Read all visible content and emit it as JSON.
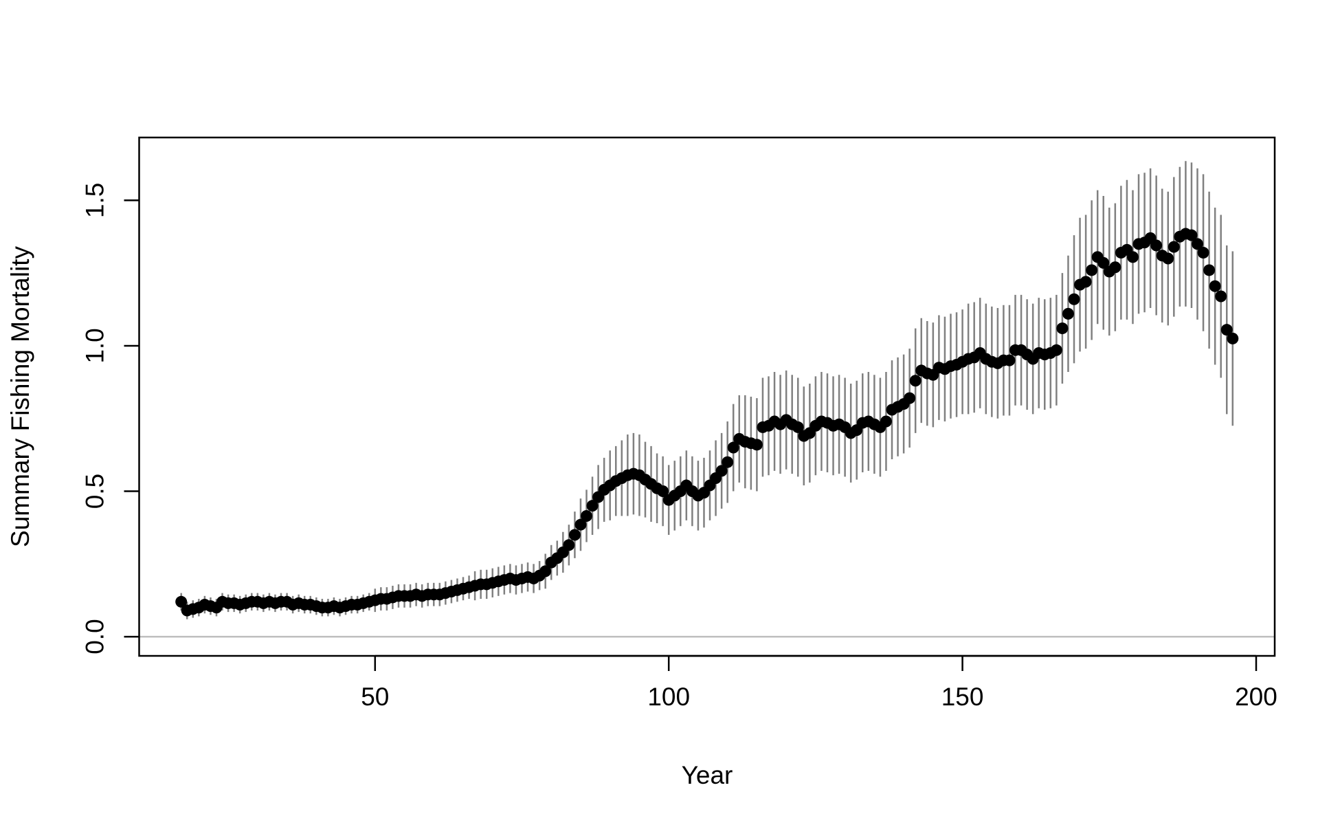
{
  "chart_data": {
    "type": "scatter",
    "x_label": "Year",
    "y_label": "Summary Fishing Mortality",
    "x": [
      17,
      18,
      19,
      20,
      21,
      22,
      23,
      24,
      25,
      26,
      27,
      28,
      29,
      30,
      31,
      32,
      33,
      34,
      35,
      36,
      37,
      38,
      39,
      40,
      41,
      42,
      43,
      44,
      45,
      46,
      47,
      48,
      49,
      50,
      51,
      52,
      53,
      54,
      55,
      56,
      57,
      58,
      59,
      60,
      61,
      62,
      63,
      64,
      65,
      66,
      67,
      68,
      69,
      70,
      71,
      72,
      73,
      74,
      75,
      76,
      77,
      78,
      79,
      80,
      81,
      82,
      83,
      84,
      85,
      86,
      87,
      88,
      89,
      90,
      91,
      92,
      93,
      94,
      95,
      96,
      97,
      98,
      99,
      100,
      101,
      102,
      103,
      104,
      105,
      106,
      107,
      108,
      109,
      110,
      111,
      112,
      113,
      114,
      115,
      116,
      117,
      118,
      119,
      120,
      121,
      122,
      123,
      124,
      125,
      126,
      127,
      128,
      129,
      130,
      131,
      132,
      133,
      134,
      135,
      136,
      137,
      138,
      139,
      140,
      141,
      142,
      143,
      144,
      145,
      146,
      147,
      148,
      149,
      150,
      151,
      152,
      153,
      154,
      155,
      156,
      157,
      158,
      159,
      160,
      161,
      162,
      163,
      164,
      165,
      166,
      167,
      168,
      169,
      170,
      171,
      172,
      173,
      174,
      175,
      176,
      177,
      178,
      179,
      180,
      181,
      182,
      183,
      184,
      185,
      186,
      187,
      188,
      189,
      190,
      191,
      192,
      193,
      194,
      195,
      196
    ],
    "values": [
      0.12,
      0.09,
      0.095,
      0.1,
      0.11,
      0.105,
      0.1,
      0.12,
      0.115,
      0.115,
      0.11,
      0.115,
      0.12,
      0.12,
      0.115,
      0.12,
      0.115,
      0.12,
      0.12,
      0.11,
      0.115,
      0.11,
      0.11,
      0.105,
      0.1,
      0.1,
      0.105,
      0.1,
      0.105,
      0.11,
      0.11,
      0.115,
      0.12,
      0.125,
      0.13,
      0.13,
      0.135,
      0.14,
      0.14,
      0.14,
      0.145,
      0.14,
      0.145,
      0.145,
      0.145,
      0.15,
      0.155,
      0.16,
      0.165,
      0.17,
      0.175,
      0.18,
      0.18,
      0.185,
      0.19,
      0.195,
      0.2,
      0.195,
      0.2,
      0.205,
      0.2,
      0.21,
      0.225,
      0.255,
      0.27,
      0.29,
      0.315,
      0.35,
      0.385,
      0.415,
      0.45,
      0.48,
      0.505,
      0.52,
      0.535,
      0.545,
      0.555,
      0.56,
      0.555,
      0.54,
      0.525,
      0.51,
      0.5,
      0.47,
      0.485,
      0.5,
      0.52,
      0.5,
      0.485,
      0.495,
      0.52,
      0.545,
      0.57,
      0.6,
      0.65,
      0.68,
      0.67,
      0.665,
      0.66,
      0.72,
      0.725,
      0.74,
      0.73,
      0.745,
      0.73,
      0.72,
      0.69,
      0.7,
      0.725,
      0.74,
      0.735,
      0.725,
      0.73,
      0.72,
      0.7,
      0.71,
      0.735,
      0.74,
      0.73,
      0.72,
      0.74,
      0.78,
      0.79,
      0.8,
      0.82,
      0.88,
      0.915,
      0.905,
      0.9,
      0.925,
      0.92,
      0.93,
      0.935,
      0.945,
      0.955,
      0.96,
      0.975,
      0.955,
      0.945,
      0.94,
      0.95,
      0.95,
      0.985,
      0.985,
      0.97,
      0.955,
      0.975,
      0.97,
      0.975,
      0.985,
      1.06,
      1.11,
      1.16,
      1.21,
      1.22,
      1.26,
      1.305,
      1.285,
      1.255,
      1.27,
      1.32,
      1.33,
      1.305,
      1.35,
      1.355,
      1.37,
      1.345,
      1.31,
      1.3,
      1.34,
      1.375,
      1.385,
      1.38,
      1.35,
      1.32,
      1.26,
      1.205,
      1.17,
      1.055,
      1.025
    ],
    "errors": [
      0.03,
      0.03,
      0.03,
      0.03,
      0.03,
      0.03,
      0.03,
      0.03,
      0.03,
      0.03,
      0.03,
      0.03,
      0.03,
      0.03,
      0.03,
      0.03,
      0.03,
      0.03,
      0.03,
      0.03,
      0.03,
      0.03,
      0.03,
      0.03,
      0.03,
      0.03,
      0.03,
      0.03,
      0.03,
      0.03,
      0.03,
      0.03,
      0.03,
      0.04,
      0.04,
      0.04,
      0.04,
      0.04,
      0.04,
      0.04,
      0.04,
      0.04,
      0.04,
      0.04,
      0.04,
      0.04,
      0.04,
      0.04,
      0.04,
      0.04,
      0.05,
      0.05,
      0.05,
      0.05,
      0.05,
      0.05,
      0.05,
      0.05,
      0.05,
      0.05,
      0.05,
      0.05,
      0.06,
      0.06,
      0.06,
      0.07,
      0.07,
      0.08,
      0.09,
      0.09,
      0.1,
      0.11,
      0.11,
      0.12,
      0.12,
      0.13,
      0.14,
      0.14,
      0.14,
      0.13,
      0.13,
      0.12,
      0.12,
      0.12,
      0.12,
      0.12,
      0.12,
      0.12,
      0.12,
      0.12,
      0.12,
      0.13,
      0.13,
      0.14,
      0.15,
      0.15,
      0.16,
      0.16,
      0.16,
      0.17,
      0.17,
      0.17,
      0.17,
      0.17,
      0.17,
      0.17,
      0.17,
      0.17,
      0.17,
      0.17,
      0.17,
      0.17,
      0.17,
      0.17,
      0.17,
      0.17,
      0.17,
      0.17,
      0.17,
      0.17,
      0.17,
      0.17,
      0.17,
      0.17,
      0.17,
      0.18,
      0.18,
      0.18,
      0.18,
      0.18,
      0.18,
      0.18,
      0.18,
      0.18,
      0.19,
      0.19,
      0.19,
      0.19,
      0.19,
      0.19,
      0.19,
      0.19,
      0.19,
      0.19,
      0.19,
      0.19,
      0.19,
      0.19,
      0.19,
      0.19,
      0.19,
      0.2,
      0.22,
      0.23,
      0.23,
      0.24,
      0.23,
      0.23,
      0.22,
      0.22,
      0.23,
      0.24,
      0.23,
      0.24,
      0.24,
      0.24,
      0.24,
      0.23,
      0.23,
      0.24,
      0.24,
      0.25,
      0.25,
      0.26,
      0.27,
      0.27,
      0.27,
      0.28,
      0.29,
      0.3
    ],
    "color": "#000000",
    "error_color": "#808080",
    "reference_line": 0,
    "reference_color": "#bebebe",
    "xlim": [
      9.84,
      203.16
    ],
    "ylim": [
      -0.066,
      1.716
    ],
    "xticks": [
      50,
      100,
      150,
      200
    ],
    "yticks": [
      {
        "value": 0,
        "label": "0.0"
      },
      0.5,
      {
        "value": 1,
        "label": "1.0"
      },
      1.5
    ]
  }
}
